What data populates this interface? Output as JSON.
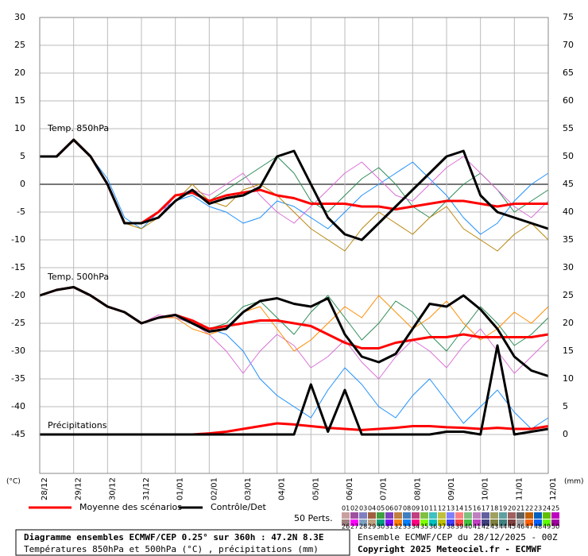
{
  "chart_data": {
    "type": "line",
    "annotations": [
      "Temp. 850hPa",
      "Temp. 500hPa",
      "Précipitations"
    ],
    "y_unit": "(°C)",
    "y2_unit": "(mm)",
    "x": [
      0,
      0.5,
      1,
      1.5,
      2,
      2.5,
      3,
      3.5,
      4,
      4.5,
      5,
      5.5,
      6,
      6.5,
      7,
      7.5,
      8,
      8.5,
      9,
      9.5,
      10,
      10.5,
      11,
      11.5,
      12,
      12.5,
      13,
      13.5,
      14,
      14.5,
      15
    ],
    "xlim": [
      0,
      15
    ],
    "xticks": [
      {
        "value": 0,
        "label": "28/12"
      },
      {
        "value": 1,
        "label": "29/12"
      },
      {
        "value": 2,
        "label": "30/12"
      },
      {
        "value": 3,
        "label": "31/12"
      },
      {
        "value": 4,
        "label": "01/01"
      },
      {
        "value": 5,
        "label": "02/01"
      },
      {
        "value": 6,
        "label": "03/01"
      },
      {
        "value": 7,
        "label": "04/01"
      },
      {
        "value": 8,
        "label": "05/01"
      },
      {
        "value": 9,
        "label": "06/01"
      },
      {
        "value": 10,
        "label": "07/01"
      },
      {
        "value": 11,
        "label": "08/01"
      },
      {
        "value": 12,
        "label": "09/01"
      },
      {
        "value": 13,
        "label": "10/01"
      },
      {
        "value": 14,
        "label": "11/01"
      },
      {
        "value": 15,
        "label": "12/01"
      }
    ],
    "ylim": [
      -52,
      30
    ],
    "yticks": [
      30,
      25,
      20,
      15,
      10,
      5,
      0,
      -5,
      -10,
      -15,
      -20,
      -25,
      -30,
      -35,
      -40,
      -45
    ],
    "y2lim": [
      -7,
      75
    ],
    "y2ticks": [
      75,
      70,
      65,
      60,
      55,
      50,
      45,
      40,
      35,
      30,
      25,
      20,
      15,
      10,
      5,
      0
    ],
    "grid": true,
    "series": [
      {
        "color": "#2e8b57",
        "line_width": 1,
        "values": [
          5,
          5,
          8,
          5,
          0,
          -7,
          -7,
          -5,
          -2,
          -1,
          -3,
          -1,
          1,
          3,
          5,
          2,
          -3,
          -5,
          -2,
          1,
          3,
          0,
          -4,
          -6,
          -3,
          0,
          2,
          -1,
          -5,
          -3,
          -1
        ]
      },
      {
        "color": "#1e90ff",
        "line_width": 1,
        "values": [
          5,
          5,
          8,
          5,
          1,
          -6,
          -8,
          -5,
          -3,
          -2,
          -4,
          -5,
          -7,
          -6,
          -3,
          -4,
          -6,
          -8,
          -5,
          -2,
          0,
          2,
          4,
          1,
          -2,
          -6,
          -9,
          -7,
          -3,
          0,
          2
        ]
      },
      {
        "color": "#da70d6",
        "line_width": 1,
        "values": [
          5,
          5,
          8,
          5,
          0,
          -7,
          -7,
          -6,
          -2,
          -1,
          -2,
          0,
          2,
          -2,
          -5,
          -7,
          -4,
          -1,
          2,
          4,
          1,
          -2,
          -3,
          0,
          3,
          5,
          2,
          -1,
          -4,
          -6,
          -3
        ]
      },
      {
        "color": "#b8860b",
        "line_width": 1,
        "values": [
          5,
          5,
          8,
          5,
          0,
          -7,
          -8,
          -6,
          -3,
          0,
          -3,
          -4,
          -1,
          0,
          -2,
          -5,
          -8,
          -10,
          -12,
          -8,
          -5,
          -7,
          -9,
          -6,
          -4,
          -8,
          -10,
          -12,
          -9,
          -7,
          -10
        ]
      },
      {
        "color": "#1e90ff",
        "line_width": 1,
        "values": [
          -20,
          -19,
          -18.5,
          -20,
          -22,
          -23,
          -25,
          -24,
          -24,
          -25,
          -26,
          -27,
          -30,
          -35,
          -38,
          -40,
          -42,
          -37,
          -33,
          -36,
          -40,
          -42,
          -38,
          -35,
          -39,
          -43,
          -40,
          -37,
          -41,
          -44,
          -42
        ]
      },
      {
        "color": "#2e8b57",
        "line_width": 1,
        "values": [
          -20,
          -19,
          -18.5,
          -20,
          -22,
          -23,
          -25,
          -24,
          -24,
          -25,
          -26,
          -25,
          -22,
          -21,
          -24,
          -27,
          -23,
          -20,
          -24,
          -28,
          -25,
          -21,
          -23,
          -27,
          -30,
          -26,
          -22,
          -25,
          -29,
          -27,
          -24
        ]
      },
      {
        "color": "#da70d6",
        "line_width": 1,
        "values": [
          -20,
          -19,
          -18.5,
          -20,
          -22,
          -23,
          -25,
          -23.5,
          -24,
          -25,
          -27,
          -30,
          -34,
          -30,
          -27,
          -29,
          -33,
          -31,
          -28,
          -32,
          -35,
          -31,
          -28,
          -30,
          -33,
          -29,
          -26,
          -30,
          -34,
          -31,
          -28
        ]
      },
      {
        "color": "#ff8c00",
        "line_width": 1,
        "values": [
          -20,
          -19,
          -18.5,
          -20,
          -22,
          -23,
          -25,
          -24,
          -24,
          -26,
          -27,
          -26,
          -23,
          -22,
          -26,
          -30,
          -28,
          -25,
          -22,
          -24,
          -20,
          -23,
          -26,
          -24,
          -21,
          -25,
          -28,
          -26,
          -23,
          -25,
          -22
        ]
      },
      {
        "name": "Moyenne des scénarios",
        "color": "#ff0000",
        "line_width": 3,
        "values": [
          5,
          5,
          8,
          5,
          0,
          -7,
          -7,
          -5,
          -2,
          -1.5,
          -3,
          -2,
          -1.5,
          -1,
          -2,
          -2.5,
          -3.5,
          -3.5,
          -3.5,
          -4,
          -4,
          -4.5,
          -4,
          -3.5,
          -3,
          -3,
          -3.5,
          -4,
          -3.5,
          -3.5,
          -3.5
        ]
      },
      {
        "color": "#ff0000",
        "line_width": 3,
        "values": [
          -20,
          -19,
          -18.5,
          -20,
          -22,
          -23,
          -25,
          -24,
          -23.5,
          -24.5,
          -26,
          -25.5,
          -25,
          -24.5,
          -24.5,
          -25,
          -25.5,
          -27,
          -28.5,
          -29.5,
          -29.5,
          -28.5,
          -28,
          -27.5,
          -27.5,
          -27,
          -27.5,
          -27.5,
          -27.5,
          -27.5,
          -27
        ]
      },
      {
        "color": "#ff0000",
        "line_width": 3,
        "axis": "y2",
        "values": [
          0,
          0,
          0,
          0,
          0,
          0,
          0,
          0,
          0,
          0,
          0.2,
          0.5,
          1,
          1.5,
          2,
          1.8,
          1.5,
          1.2,
          1,
          0.8,
          1,
          1.2,
          1.5,
          1.5,
          1.3,
          1.2,
          1,
          1.2,
          1,
          1,
          1.5
        ]
      },
      {
        "name": "Contrôle/Det",
        "color": "#000000",
        "line_width": 3,
        "values": [
          5,
          5,
          8,
          5,
          0,
          -7,
          -7,
          -6,
          -3,
          -1,
          -3.5,
          -2.5,
          -2,
          -0.5,
          5,
          6,
          0,
          -6,
          -9,
          -10,
          -7,
          -4,
          -1,
          2,
          5,
          6,
          -2,
          -5,
          -6,
          -7,
          -8
        ]
      },
      {
        "color": "#000000",
        "line_width": 3,
        "values": [
          -20,
          -19,
          -18.5,
          -20,
          -22,
          -23,
          -25,
          -24,
          -23.5,
          -25,
          -26.5,
          -26,
          -23,
          -21,
          -20.5,
          -21.5,
          -22,
          -20.5,
          -27,
          -31,
          -32,
          -30.5,
          -26,
          -21.5,
          -22,
          -20,
          -22.5,
          -26,
          -31,
          -33.5,
          -34.5
        ]
      },
      {
        "color": "#000000",
        "line_width": 3,
        "axis": "y2",
        "values": [
          0,
          0,
          0,
          0,
          0,
          0,
          0,
          0,
          0,
          0,
          0,
          0,
          0,
          0,
          0,
          0,
          9,
          0.5,
          8,
          0,
          0,
          0,
          0,
          0,
          0.5,
          0.5,
          0,
          16,
          0,
          0.5,
          1
        ]
      }
    ],
    "perts_label": "50 Perts.",
    "members": [
      {
        "label": "01",
        "color": "#c8a0a0"
      },
      {
        "label": "02",
        "color": "#a050a0"
      },
      {
        "label": "03",
        "color": "#8080c0"
      },
      {
        "label": "04",
        "color": "#a06040"
      },
      {
        "label": "05",
        "color": "#40a040"
      },
      {
        "label": "06",
        "color": "#8040c0"
      },
      {
        "label": "07",
        "color": "#c08040"
      },
      {
        "label": "08",
        "color": "#4080c0"
      },
      {
        "label": "09",
        "color": "#c04080"
      },
      {
        "label": "10",
        "color": "#80c040"
      },
      {
        "label": "11",
        "color": "#40c0c0"
      },
      {
        "label": "12",
        "color": "#c0c040"
      },
      {
        "label": "13",
        "color": "#8080ff"
      },
      {
        "label": "14",
        "color": "#ff8080"
      },
      {
        "label": "15",
        "color": "#80c080"
      },
      {
        "label": "16",
        "color": "#c080c0"
      },
      {
        "label": "17",
        "color": "#6060a0"
      },
      {
        "label": "18",
        "color": "#a0a060"
      },
      {
        "label": "19",
        "color": "#60a0a0"
      },
      {
        "label": "20",
        "color": "#a06060"
      },
      {
        "label": "21",
        "color": "#606060"
      },
      {
        "label": "22",
        "color": "#c06000"
      },
      {
        "label": "23",
        "color": "#0060c0"
      },
      {
        "label": "24",
        "color": "#60c000"
      },
      {
        "label": "25",
        "color": "#c000c0"
      },
      {
        "label": "26",
        "color": "#a08080"
      },
      {
        "label": "27",
        "color": "#ff00ff"
      },
      {
        "label": "28",
        "color": "#80a0c0"
      },
      {
        "label": "29",
        "color": "#c0a080"
      },
      {
        "label": "30",
        "color": "#00a080"
      },
      {
        "label": "31",
        "color": "#8000ff"
      },
      {
        "label": "32",
        "color": "#ff8000"
      },
      {
        "label": "33",
        "color": "#0080ff"
      },
      {
        "label": "34",
        "color": "#ff0080"
      },
      {
        "label": "35",
        "color": "#80ff00"
      },
      {
        "label": "36",
        "color": "#00c0c0"
      },
      {
        "label": "37",
        "color": "#c0c000"
      },
      {
        "label": "38",
        "color": "#4040ff"
      },
      {
        "label": "39",
        "color": "#ff4040"
      },
      {
        "label": "40",
        "color": "#40c040"
      },
      {
        "label": "41",
        "color": "#c040c0"
      },
      {
        "label": "42",
        "color": "#404080"
      },
      {
        "label": "43",
        "color": "#808040"
      },
      {
        "label": "44",
        "color": "#408080"
      },
      {
        "label": "45",
        "color": "#804040"
      },
      {
        "label": "46",
        "color": "#a0a0a0"
      },
      {
        "label": "47",
        "color": "#ff6000"
      },
      {
        "label": "48",
        "color": "#0060ff"
      },
      {
        "label": "49",
        "color": "#60ff00"
      },
      {
        "label": "50",
        "color": "#a000a0"
      }
    ]
  },
  "footer": {
    "box_title": "Diagramme ensembles ECMWF/CEP 0.25° sur 360h : 47.2N 8.3E",
    "box_subtitle": "Températures 850hPa et 500hPa (°C) , précipitations (mm)",
    "run": "Ensemble ECMWF/CEP du 28/12/2025 - 00Z",
    "copyright": "Copyright 2025 Meteociel.fr - ECMWF"
  }
}
